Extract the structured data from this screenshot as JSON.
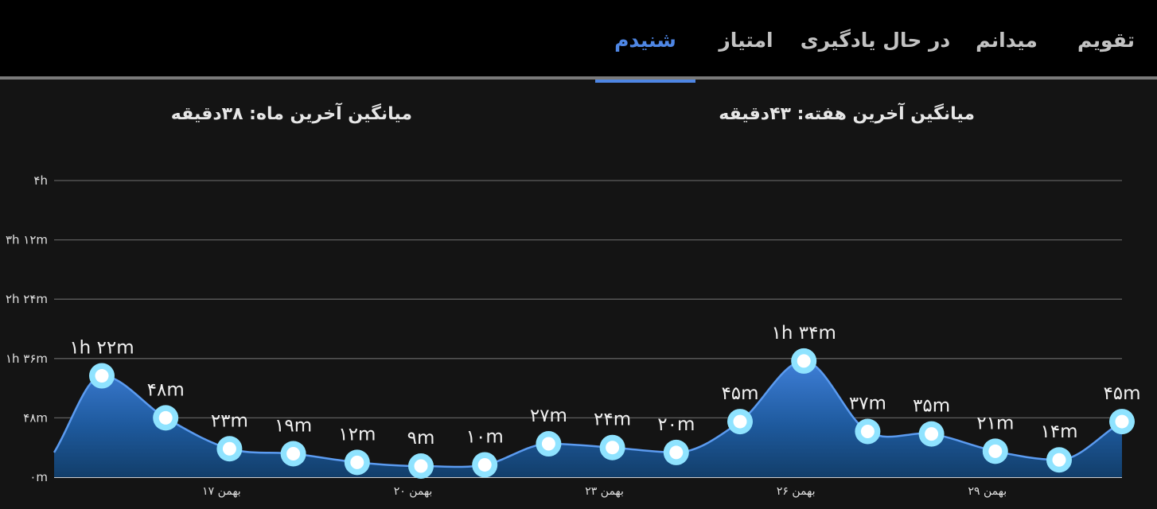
{
  "tabs": [
    {
      "label": "تقویم",
      "active": false
    },
    {
      "label": "میدانم",
      "active": false
    },
    {
      "label": "در حال یادگیری",
      "active": false
    },
    {
      "label": "امتیاز",
      "active": false
    },
    {
      "label": "شنیدم",
      "active": true
    }
  ],
  "stats": {
    "week_avg": "میانگین آخرین هفته: ۴۳دقیقه",
    "month_avg": "میانگین آخرین ماه: ۳۸دقیقه"
  },
  "colors": {
    "accent": "#4e86e4",
    "line": "#5b9bf0",
    "point_ring": "#8fe3ff",
    "background": "#141414",
    "header": "#000000"
  },
  "chart_data": {
    "type": "area",
    "y_unit": "minutes",
    "ylim": [
      0,
      240
    ],
    "yticks": [
      {
        "value": 0,
        "label": "۰m"
      },
      {
        "value": 48,
        "label": "۴۸m"
      },
      {
        "value": 96,
        "label": "۱h ۳۶m"
      },
      {
        "value": 144,
        "label": "۲h ۲۴m"
      },
      {
        "value": 192,
        "label": "۳h ۱۲m"
      },
      {
        "value": 240,
        "label": "۴h"
      }
    ],
    "xticks": [
      {
        "index": 2,
        "label": "۱۷ بهمن"
      },
      {
        "index": 5,
        "label": "۲۰ بهمن"
      },
      {
        "index": 8,
        "label": "۲۳ بهمن"
      },
      {
        "index": 11,
        "label": "۲۶ بهمن"
      },
      {
        "index": 14,
        "label": "۲۹ بهمن"
      }
    ],
    "points": [
      {
        "value": 82,
        "label": "۱h ۲۲m"
      },
      {
        "value": 48,
        "label": "۴۸m"
      },
      {
        "value": 23,
        "label": "۲۳m"
      },
      {
        "value": 19,
        "label": "۱۹m"
      },
      {
        "value": 12,
        "label": "۱۲m"
      },
      {
        "value": 9,
        "label": "۹m"
      },
      {
        "value": 10,
        "label": "۱۰m"
      },
      {
        "value": 27,
        "label": "۲۷m"
      },
      {
        "value": 24,
        "label": "۲۴m"
      },
      {
        "value": 20,
        "label": "۲۰m"
      },
      {
        "value": 45,
        "label": "۴۵m"
      },
      {
        "value": 94,
        "label": "۱h ۳۴m"
      },
      {
        "value": 37,
        "label": "۳۷m"
      },
      {
        "value": 35,
        "label": "۳۵m"
      },
      {
        "value": 21,
        "label": "۲۱m"
      },
      {
        "value": 14,
        "label": "۱۴m"
      },
      {
        "value": 45,
        "label": "۴۵m"
      }
    ],
    "edge_values": {
      "left": 20
    },
    "grid": true,
    "legend": "none"
  }
}
